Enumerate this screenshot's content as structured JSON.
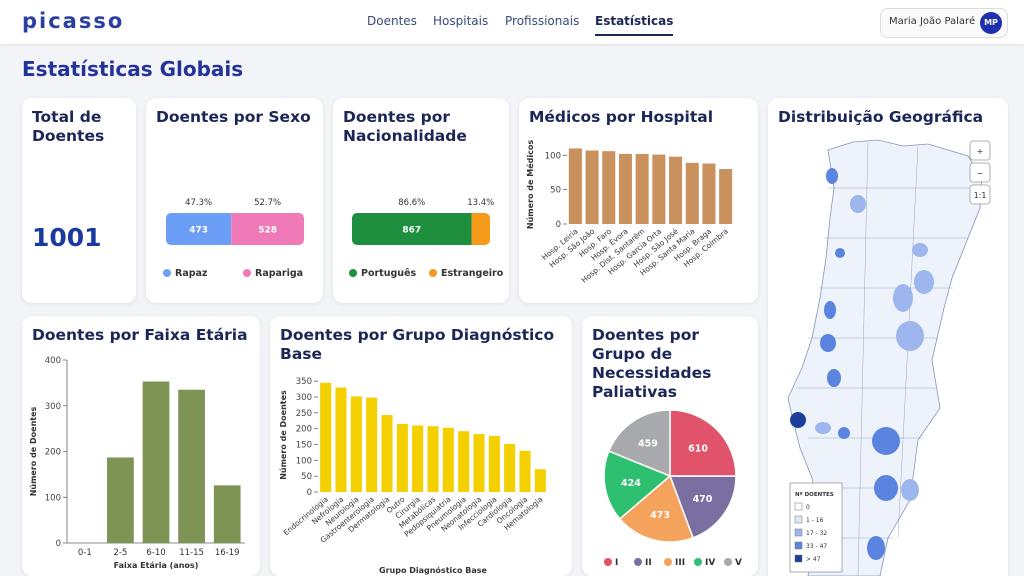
{
  "header": {
    "logo": "picasso",
    "nav": [
      "Doentes",
      "Hospitais",
      "Profissionais",
      "Estatísticas"
    ],
    "active_nav": 3,
    "user_name": "Maria João Palaré",
    "user_initials": "MP"
  },
  "page_title": "Estatísticas Globais",
  "chart_data": [
    {
      "type": "kpi",
      "title": "Total de Doentes",
      "value": 1001
    },
    {
      "type": "stacked_bar",
      "title": "Doentes por Sexo",
      "series": [
        {
          "name": "Rapaz",
          "color": "#6d9ef7",
          "values": [
            473
          ],
          "share_label": "47.3%"
        },
        {
          "name": "Rapariga",
          "color": "#f07ab8",
          "values": [
            528
          ],
          "share_label": "52.7%"
        }
      ]
    },
    {
      "type": "stacked_bar",
      "title": "Doentes por Nacionalidade",
      "series": [
        {
          "name": "Português",
          "color": "#1e8f3e",
          "values": [
            867
          ],
          "share_label": "86.6%"
        },
        {
          "name": "Estrangeiro",
          "color": "#f59a1b",
          "values": [
            134
          ],
          "value_labels": [
            null
          ],
          "share_label": "13.4%"
        }
      ]
    },
    {
      "type": "bar",
      "title": "Médicos por Hospital",
      "ylabel": "Número de Médicos",
      "categories": [
        "Hosp. Leiria",
        "Hosp. São João",
        "Hosp. Faro",
        "Hosp. Évora",
        "Hosp. Dist. Santarém",
        "Hosp. Garcia Orta",
        "Hosp. São José",
        "Hosp. Santa Maria",
        "Hosp. Braga",
        "Hosp. Coimbra"
      ],
      "values": [
        110,
        107,
        106,
        102,
        102,
        101,
        98,
        89,
        88,
        80
      ],
      "color": "#c8915e",
      "ylim": [
        0,
        115
      ],
      "yticks": [
        0,
        50,
        100
      ]
    },
    {
      "type": "bar",
      "title": "Doentes por Faixa Etária",
      "xlabel": "Faixa Etária (anos)",
      "ylabel": "Número de Doentes",
      "categories": [
        "0-1",
        "2-5",
        "6-10",
        "11-15",
        "16-19"
      ],
      "values": [
        0,
        187,
        353,
        335,
        126
      ],
      "color": "#7d9454",
      "ylim": [
        0,
        400
      ],
      "yticks": [
        0,
        100,
        200,
        300,
        400
      ]
    },
    {
      "type": "bar",
      "title": "Doentes por Grupo Diagnóstico Base",
      "xlabel": "Grupo Diagnóstico Base",
      "ylabel": "Número de Doentes",
      "categories": [
        "Endocrinologia",
        "Nefrologia",
        "Neurologia",
        "Gastroenterologia",
        "Dermatologia",
        "Outro",
        "Cirurgia",
        "Metabólicas",
        "Pedopsiquiatria",
        "Pneumologia",
        "Neonatologia",
        "Infecciologia",
        "Cardiologia",
        "Oncologia",
        "Hematologia"
      ],
      "values": [
        345,
        330,
        302,
        298,
        243,
        215,
        210,
        208,
        203,
        192,
        183,
        177,
        152,
        130,
        72
      ],
      "color": "#f5d000",
      "ylim": [
        0,
        360
      ],
      "yticks": [
        0,
        50,
        100,
        150,
        200,
        250,
        300,
        350
      ]
    },
    {
      "type": "pie",
      "title": "Doentes por Grupo de Necessidades Paliativas",
      "categories": [
        "I",
        "II",
        "III",
        "IV",
        "V"
      ],
      "values": [
        610,
        470,
        473,
        424,
        459
      ],
      "colors": [
        "#e0536b",
        "#7b6ea0",
        "#f5a35c",
        "#2fbf71",
        "#a8a9ad"
      ]
    }
  ],
  "map": {
    "title": "Distribuição Geográfica",
    "controls": [
      "+",
      "−",
      "1:1"
    ],
    "legend": {
      "title": "Nº DOENTES",
      "items": [
        {
          "label": "0",
          "color": "#ffffff"
        },
        {
          "label": "1 - 16",
          "color": "#dfe8fa"
        },
        {
          "label": "17 - 32",
          "color": "#9db7ee"
        },
        {
          "label": "33 - 47",
          "color": "#5b84e0"
        },
        {
          "label": "> 47",
          "color": "#1d3f9a"
        }
      ]
    }
  }
}
